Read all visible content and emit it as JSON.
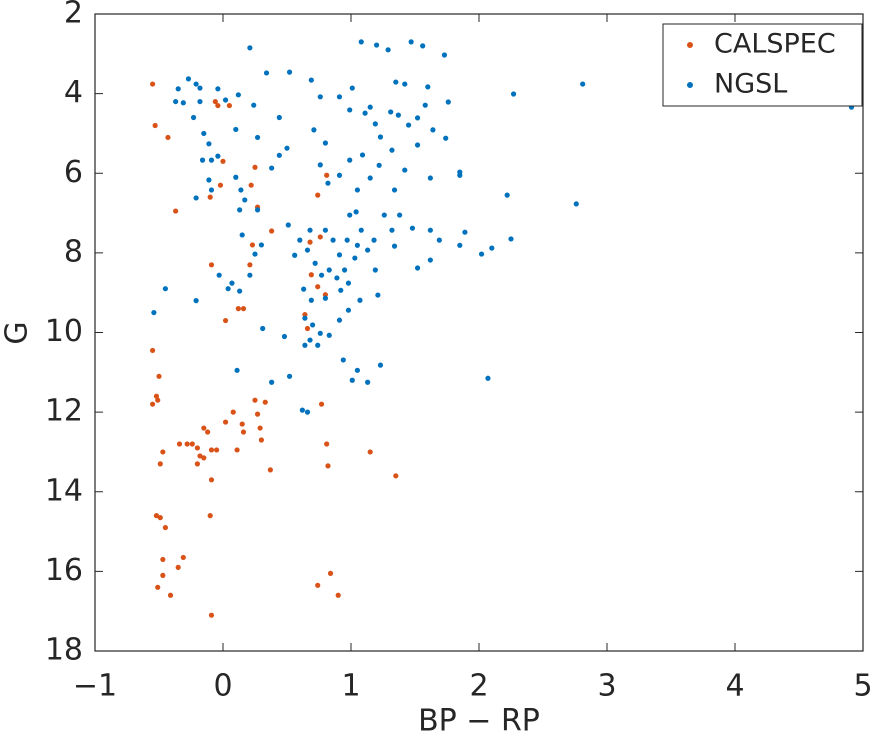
{
  "chart_data": {
    "type": "scatter",
    "xlabel": "BP − RP",
    "ylabel": "G",
    "xlim": [
      -1,
      5
    ],
    "xticks": [
      {
        "value": -1,
        "label": "−1"
      },
      0,
      1,
      2,
      3,
      4,
      5
    ],
    "ylim": [
      2,
      18
    ],
    "y_reversed": true,
    "yticks": [
      2,
      4,
      6,
      8,
      10,
      12,
      14,
      16,
      18
    ],
    "legend": "upper right",
    "grid": false,
    "series": [
      {
        "name": "CALSPEC",
        "color": "#d95319",
        "x": [
          -0.55,
          -0.53,
          -0.43,
          -0.37,
          -0.09,
          0.02,
          0.12,
          0.16,
          -0.06,
          -0.04,
          0.05,
          0,
          -0.02,
          -0.1,
          0.25,
          0.27,
          0.23,
          0.21,
          0.38,
          0.22,
          -0.55,
          -0.5,
          -0.52,
          -0.51,
          -0.55,
          -0.47,
          -0.49,
          -0.34,
          -0.28,
          -0.24,
          -0.2,
          -0.18,
          -0.2,
          -0.15,
          -0.15,
          -0.12,
          -0.09,
          -0.05,
          -0.09,
          0.08,
          0.02,
          0.15,
          0.16,
          0.11,
          0.25,
          0.33,
          0.27,
          0.29,
          0.3,
          0.37,
          -0.1,
          -0.52,
          -0.49,
          -0.45,
          -0.47,
          -0.31,
          -0.35,
          -0.47,
          -0.51,
          -0.41,
          -0.09,
          0.68,
          0.76,
          0.74,
          0.81,
          0.69,
          0.74,
          0.8,
          0.64,
          0.66,
          0.77,
          0.81,
          0.82,
          1.15,
          1.35,
          0.84,
          0.74,
          0.9
        ],
        "values": [
          3.76,
          4.8,
          5.1,
          6.95,
          8.3,
          9.7,
          9.4,
          9.4,
          4.2,
          4.3,
          4.3,
          5.7,
          6.3,
          6.6,
          5.85,
          6.85,
          7.8,
          8.3,
          7.45,
          6.3,
          10.45,
          11.1,
          11.6,
          11.7,
          11.8,
          13,
          13.3,
          12.8,
          12.8,
          12.8,
          12.9,
          13.1,
          13.3,
          13.15,
          12.4,
          12.5,
          12.95,
          12.95,
          13.7,
          12,
          12.25,
          12.3,
          12.5,
          12.95,
          11.7,
          11.75,
          12.05,
          12.4,
          12.7,
          13.45,
          14.6,
          14.6,
          14.65,
          14.9,
          15.7,
          15.65,
          15.9,
          16.1,
          16.4,
          16.6,
          17.1,
          7.73,
          7.6,
          6.55,
          6.05,
          8.55,
          8.85,
          9.05,
          9.55,
          9.9,
          11.8,
          12.8,
          13.35,
          13,
          13.6,
          16.05,
          16.35,
          16.6
        ]
      },
      {
        "name": "NGSL",
        "color": "#0072bd",
        "x": [
          -0.27,
          -0.21,
          -0.18,
          -0.35,
          -0.37,
          -0.31,
          -0.18,
          -0.04,
          0.02,
          -0.23,
          -0.15,
          -0.11,
          -0.16,
          -0.09,
          -0.11,
          -0.09,
          -0.21,
          -0.04,
          0.1,
          0.12,
          0.21,
          0.34,
          0.24,
          0.27,
          0.1,
          0.14,
          0.17,
          0.13,
          0.27,
          0.15,
          0.3,
          0.25,
          0.21,
          0.07,
          0.04,
          0.13,
          -0.03,
          -0.21,
          -0.54,
          -0.45,
          0.11,
          0.31,
          0.38,
          0.52,
          0.48,
          0.62,
          0.5,
          0.44,
          0.44,
          0.52,
          0.38,
          0.51,
          0.56,
          0.69,
          0.76,
          0.71,
          0.8,
          0.91,
          0.99,
          1.01,
          1.08,
          1.2,
          1.29,
          1.47,
          1.56,
          1.73,
          1.35,
          1.42,
          1.6,
          1.76,
          1.58,
          1.11,
          1.15,
          1.19,
          1.31,
          1.37,
          1.23,
          1.32,
          1.45,
          1.52,
          1.64,
          1.74,
          1.52,
          1.42,
          1.62,
          1.85,
          1.85,
          1.09,
          0.99,
          0.91,
          1.05,
          1.15,
          1.22,
          1.34,
          0.76,
          0.82,
          0.68,
          0.8,
          0.86,
          0.99,
          1.04,
          1.08,
          0.97,
          0.91,
          1.03,
          1.13,
          1.18,
          1.26,
          1.32,
          1.38,
          1.48,
          1.62,
          1.69,
          1.62,
          1.52,
          1.85,
          1.89,
          2.02,
          2.1,
          2.25,
          2.22,
          2.76,
          2.81,
          2.27,
          4.91,
          2.07,
          0.66,
          0.72,
          0.77,
          0.83,
          0.89,
          0.95,
          0.98,
          0.92,
          0.8,
          0.69,
          0.64,
          0.7,
          0.76,
          0.68,
          0.74,
          0.83,
          0.91,
          0.98,
          1.07,
          1.21,
          1.19,
          0.64,
          0.94,
          1.05,
          1.13,
          1.01,
          1.23,
          0.66,
          1.34,
          1.05,
          0.6,
          0.63
        ],
        "values": [
          3.63,
          3.76,
          3.86,
          3.88,
          4.2,
          4.23,
          4.2,
          3.88,
          4.16,
          4.6,
          5,
          5.26,
          5.67,
          5.67,
          6.17,
          6.42,
          6.62,
          5.57,
          4.9,
          4.03,
          2.85,
          3.48,
          4.29,
          5.1,
          6.1,
          6.42,
          6.67,
          6.92,
          6.92,
          7.55,
          7.8,
          8.03,
          8.56,
          8.76,
          8.9,
          8.96,
          8.56,
          9.2,
          9.5,
          8.9,
          10.95,
          9.9,
          11.25,
          11.1,
          10.1,
          11.95,
          5.37,
          5.55,
          4.6,
          3.46,
          5.87,
          7.3,
          8.06,
          3.66,
          4.08,
          4.91,
          5.24,
          4.08,
          4.41,
          3.86,
          2.7,
          2.78,
          2.9,
          2.7,
          2.8,
          3.03,
          3.71,
          3.76,
          3.83,
          4.21,
          4.29,
          4.49,
          4.34,
          4.76,
          4.46,
          4.54,
          5.09,
          5.42,
          4.79,
          4.61,
          4.91,
          5.12,
          5.29,
          5.92,
          6.12,
          5.97,
          6.05,
          5.54,
          5.67,
          6.05,
          6.42,
          6.12,
          5.8,
          6.42,
          5.79,
          6.25,
          7.43,
          7.43,
          7.68,
          7.05,
          6.97,
          7.43,
          7.68,
          8.05,
          8.13,
          7.93,
          7.68,
          7.05,
          7.43,
          7.05,
          7.38,
          7.43,
          7.68,
          8.18,
          8.38,
          7.81,
          7.48,
          8.03,
          7.88,
          7.65,
          6.55,
          6.77,
          3.76,
          4.01,
          4.34,
          11.15,
          7.93,
          8.26,
          8.56,
          8.43,
          8.63,
          8.43,
          8.76,
          8.94,
          9.14,
          9.19,
          9.64,
          9.81,
          10.02,
          10.19,
          10.32,
          10.07,
          9.69,
          9.44,
          9.19,
          9.06,
          8.43,
          10.32,
          10.69,
          10.95,
          11.25,
          11.2,
          10.82,
          12,
          7.83,
          7.81,
          7.68,
          8.91
        ]
      }
    ]
  }
}
